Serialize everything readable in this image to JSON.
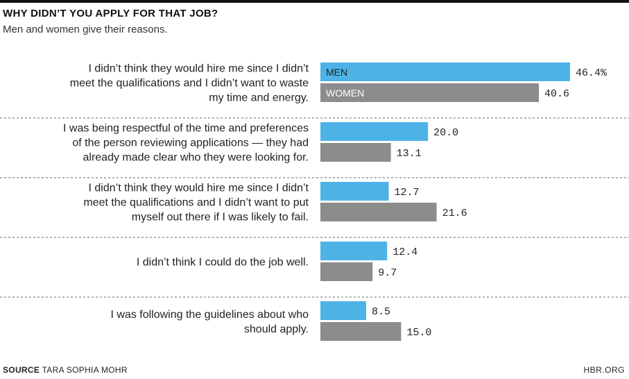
{
  "header": {
    "title": "WHY DIDN’T YOU APPLY FOR THAT JOB?",
    "subtitle": "Men and women give their reasons."
  },
  "footer": {
    "source_label": "SOURCE",
    "source_text": "TARA SOPHIA MOHR",
    "credit": "HBR.ORG"
  },
  "colors": {
    "men": "#4db3e6",
    "women": "#8c8c8c",
    "divider": "#999999"
  },
  "chart_data": {
    "type": "bar",
    "orientation": "horizontal",
    "categories": [
      [
        "I didn’t think they would hire me since I didn’t",
        "meet the qualifications and I didn’t want to waste",
        "my time and energy."
      ],
      [
        "I was being respectful of the time and preferences",
        "of the person reviewing applications — they had",
        "already made clear who they were looking for."
      ],
      [
        "I didn’t think they would hire me since I didn’t",
        "meet the qualifications and I didn’t want to put",
        "myself out there if I was likely to fail."
      ],
      [
        "I didn’t think I could do the job well."
      ],
      [
        "I was following the guidelines about who",
        "should apply."
      ]
    ],
    "series": [
      {
        "name": "MEN",
        "values": [
          46.4,
          20.0,
          12.7,
          12.4,
          8.5
        ],
        "labels": [
          "46.4%",
          "20.0",
          "12.7",
          "12.4",
          "8.5"
        ]
      },
      {
        "name": "WOMEN",
        "values": [
          40.6,
          13.1,
          21.6,
          9.7,
          15.0
        ],
        "labels": [
          "40.6",
          "13.1",
          "21.6",
          "9.7",
          "15.0"
        ]
      }
    ],
    "xlim": [
      0,
      46.4
    ],
    "grid": false,
    "legend": "inside-first-bars"
  }
}
